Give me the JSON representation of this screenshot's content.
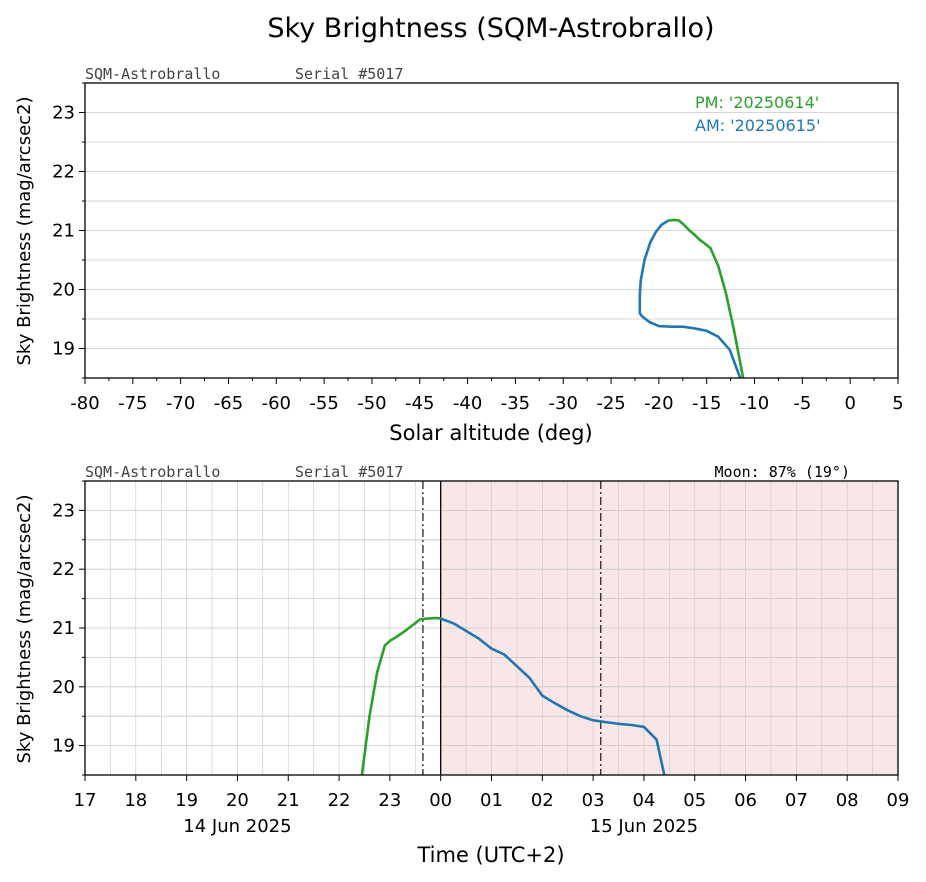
{
  "figure": {
    "title": "Sky Brightness (SQM-Astrobrallo)",
    "device_name": "SQM-Astrobrallo",
    "serial": "Serial #5017"
  },
  "colors": {
    "pm": "#2ca02c",
    "am": "#1f77b4",
    "night_shade": "#f9e6e6"
  },
  "chart_data": [
    {
      "type": "line",
      "xlabel": "Solar altitude (deg)",
      "ylabel": "Sky Brightness (mag/arcsec2)",
      "xlim": [
        -80,
        5
      ],
      "ylim": [
        18.5,
        23.5
      ],
      "x_ticks": [
        -80,
        -75,
        -70,
        -65,
        -60,
        -55,
        -50,
        -45,
        -40,
        -35,
        -30,
        -25,
        -20,
        -15,
        -10,
        -5,
        0,
        5
      ],
      "x_tick_labels": [
        "-80",
        "-75",
        "-70",
        "-65",
        "-60",
        "-55",
        "-50",
        "-45",
        "-40",
        "-35",
        "-30",
        "-25",
        "-20",
        "-15",
        "-10",
        "-5",
        "0",
        "5"
      ],
      "y_ticks": [
        19,
        20,
        21,
        22,
        23
      ],
      "y_tick_labels": [
        "19",
        "20",
        "21",
        "22",
        "23"
      ],
      "grid": "horizontal",
      "legend_position": "top-right",
      "legend": [
        "PM: '20250614'",
        "AM: '20250615'"
      ],
      "series": [
        {
          "name": "PM: '20250614'",
          "color": "#2ca02c",
          "x": [
            -11.2,
            -11.6,
            -12.2,
            -13.0,
            -13.8,
            -14.6,
            -15.2,
            -15.8,
            -16.3,
            -16.8,
            -17.4,
            -17.9,
            -18.4,
            -19.0
          ],
          "y": [
            18.5,
            18.85,
            19.35,
            19.95,
            20.4,
            20.7,
            20.78,
            20.85,
            20.93,
            21.0,
            21.1,
            21.17,
            21.18,
            21.17
          ]
        },
        {
          "name": "AM: '20250615'",
          "color": "#1f77b4",
          "x": [
            -19.0,
            -19.7,
            -20.3,
            -20.9,
            -21.5,
            -21.9,
            -22.0,
            -22.0,
            -21.8,
            -21.0,
            -20.0,
            -18.7,
            -17.5,
            -16.3,
            -15.0,
            -13.8,
            -12.6,
            -11.5
          ],
          "y": [
            21.17,
            21.1,
            20.98,
            20.8,
            20.5,
            20.15,
            19.9,
            19.6,
            19.55,
            19.45,
            19.38,
            19.37,
            19.37,
            19.34,
            19.3,
            19.2,
            18.98,
            18.5
          ]
        }
      ]
    },
    {
      "type": "line",
      "xlabel": "Time (UTC+2)",
      "ylabel": "Sky Brightness (mag/arcsec2)",
      "xlim": [
        0,
        16
      ],
      "ylim": [
        18.5,
        23.5
      ],
      "x_ticks": [
        0,
        1,
        2,
        3,
        4,
        5,
        6,
        7,
        8,
        9,
        10,
        11,
        12,
        13,
        14,
        15,
        16
      ],
      "x_tick_labels": [
        "17",
        "18",
        "19",
        "20",
        "21",
        "22",
        "23",
        "00",
        "01",
        "02",
        "03",
        "04",
        "05",
        "06",
        "07",
        "08",
        "09"
      ],
      "date_labels": [
        {
          "at": 3,
          "label": "14 Jun 2025"
        },
        {
          "at": 11,
          "label": "15 Jun 2025"
        }
      ],
      "y_ticks": [
        19,
        20,
        21,
        22,
        23
      ],
      "y_tick_labels": [
        "19",
        "20",
        "21",
        "22",
        "23"
      ],
      "grid": "both",
      "moon": "Moon: 87% (19°)",
      "night_span": [
        7,
        16
      ],
      "vlines_dashdot": [
        6.65,
        10.15
      ],
      "midnight_line": 7,
      "series": [
        {
          "name": "PM",
          "color": "#2ca02c",
          "x": [
            5.45,
            5.6,
            5.75,
            5.9,
            6.0,
            6.15,
            6.3,
            6.45,
            6.6,
            6.75,
            6.9,
            7.0
          ],
          "y": [
            18.5,
            19.5,
            20.25,
            20.7,
            20.78,
            20.86,
            20.95,
            21.05,
            21.15,
            21.16,
            21.17,
            21.16
          ]
        },
        {
          "name": "AM",
          "color": "#1f77b4",
          "x": [
            7.0,
            7.25,
            7.5,
            7.75,
            8.0,
            8.25,
            8.5,
            8.75,
            9.0,
            9.25,
            9.5,
            9.75,
            10.0,
            10.25,
            10.5,
            10.75,
            11.0,
            11.25,
            11.4
          ],
          "y": [
            21.16,
            21.08,
            20.95,
            20.82,
            20.65,
            20.55,
            20.35,
            20.15,
            19.85,
            19.72,
            19.6,
            19.5,
            19.43,
            19.4,
            19.37,
            19.35,
            19.32,
            19.1,
            18.5
          ]
        }
      ]
    }
  ]
}
